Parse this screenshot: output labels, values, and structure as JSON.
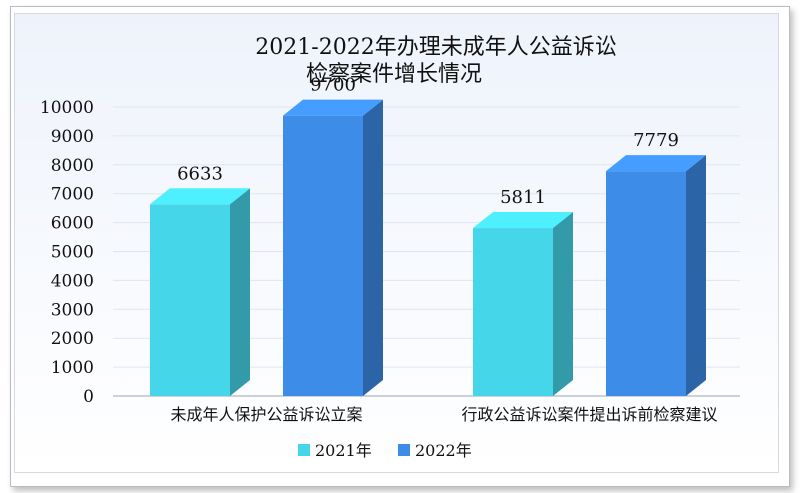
{
  "chart_data": {
    "type": "bar",
    "title_line1": "2021-2022年办理未成年人公益诉讼",
    "title_line2": "检察案件增长情况",
    "categories": [
      "未成年人保护公益诉讼立案",
      "行政公益诉讼案件提出诉前检察建议"
    ],
    "series": [
      {
        "name": "2021年",
        "values": [
          6633,
          5811
        ],
        "color": "#46d6ea"
      },
      {
        "name": "2022年",
        "values": [
          9700,
          7779
        ],
        "color": "#3d8ce8"
      }
    ],
    "y_ticks": [
      "0",
      "1000",
      "2000",
      "3000",
      "4000",
      "5000",
      "6000",
      "7000",
      "8000",
      "9000",
      "10000"
    ],
    "ylim": [
      0,
      10000
    ],
    "grid": true,
    "legend_position": "bottom",
    "bar_style": "3d"
  }
}
